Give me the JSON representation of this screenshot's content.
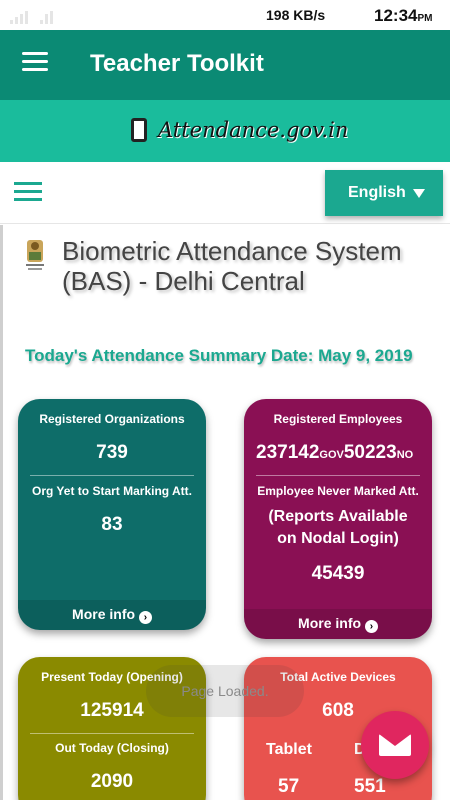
{
  "status_bar": {
    "net_speed": "198 KB/s",
    "time": "12:34",
    "ampm": "PM"
  },
  "app_bar": {
    "title": "Teacher Toolkit",
    "menu_icon": "hamburger-menu-icon"
  },
  "brand": {
    "text": "Attendance.gov.in",
    "icon": "mobile-phone-icon"
  },
  "nav": {
    "menu_icon": "hamburger-menu-icon",
    "language": "English"
  },
  "header": {
    "emblem": "national-emblem-icon",
    "title": "Biometric Attendance System (BAS) - Delhi Central"
  },
  "summary": {
    "title": "Today's Attendance Summary Date: May 9, 2019"
  },
  "cards": {
    "organizations": {
      "label_registered": "Registered Organizations",
      "registered": "739",
      "label_yet_to_start": "Org Yet to Start Marking Att.",
      "yet_to_start": "83",
      "more_info": "More info"
    },
    "employees": {
      "label_registered": "Registered Employees",
      "gov_count": "237142",
      "gov_suffix": "GOV",
      "non_gov_count": "50223",
      "non_gov_suffix": "NO",
      "label_never_marked": "Employee Never Marked Att.",
      "reports_note": "(Reports Available on Nodal Login)",
      "never_marked": "45439",
      "more_info": "More info"
    },
    "present": {
      "label_opening": "Present Today (Opening)",
      "opening": "125914",
      "label_closing": "Out Today (Closing)",
      "closing": "2090"
    },
    "devices": {
      "label_total": "Total Active Devices",
      "total": "608",
      "label_tablet": "Tablet",
      "tablet": "57",
      "label_desktop": "De",
      "desktop": "551"
    }
  },
  "toast": {
    "text": "Page Loaded."
  },
  "fab": {
    "icon": "envelope-icon"
  },
  "colors": {
    "app_bar": "#0b8a74",
    "brand_bar": "#1abc9c",
    "accent": "#1ba890",
    "org_card": "#0e6d69",
    "emp_card": "#8a1054",
    "present_card": "#8a8a00",
    "devices_card": "#e8534e",
    "fab": "#e0265f"
  }
}
